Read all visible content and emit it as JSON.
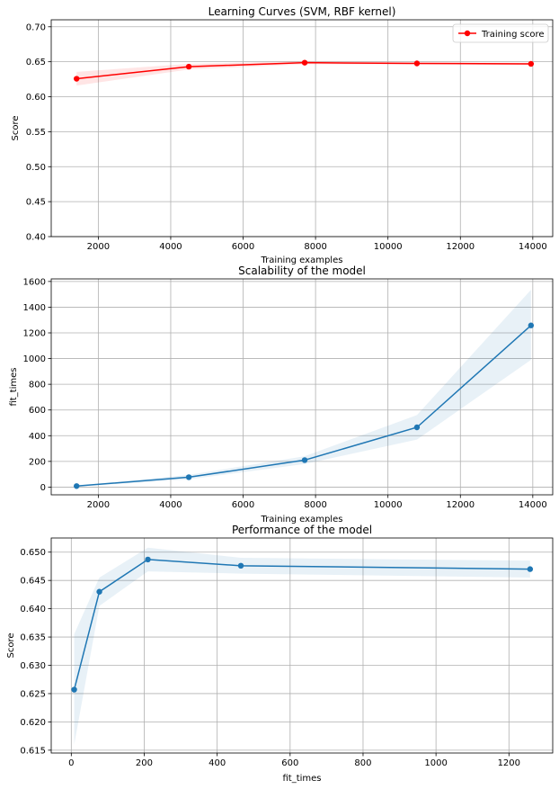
{
  "chart_data": [
    {
      "type": "line",
      "title": "Learning Curves (SVM, RBF kernel)",
      "xlabel": "Training examples",
      "ylabel": "Score",
      "xlim": [
        700,
        14550
      ],
      "ylim": [
        0.4,
        0.71
      ],
      "xticks": [
        2000,
        4000,
        6000,
        8000,
        10000,
        12000,
        14000
      ],
      "yticks": [
        0.4,
        0.45,
        0.5,
        0.55,
        0.6,
        0.65,
        0.7
      ],
      "xtick_labels": [
        "2000",
        "4000",
        "6000",
        "8000",
        "10000",
        "12000",
        "14000"
      ],
      "ytick_labels": [
        "0.40",
        "0.45",
        "0.50",
        "0.55",
        "0.60",
        "0.65",
        "0.70"
      ],
      "grid": true,
      "legend": "upper right",
      "series": [
        {
          "name": "Training score",
          "color": "#ff0000",
          "x": [
            1400,
            4500,
            7700,
            10800,
            13950
          ],
          "y": [
            0.6257,
            0.643,
            0.6487,
            0.6476,
            0.647
          ],
          "band_low": [
            0.616,
            0.639,
            0.6465,
            0.646,
            0.6455
          ],
          "band_high": [
            0.6355,
            0.647,
            0.651,
            0.6492,
            0.6485
          ]
        }
      ]
    },
    {
      "type": "line",
      "title": "Scalability of the model",
      "xlabel": "Training examples",
      "ylabel": "fit_times",
      "xlim": [
        700,
        14550
      ],
      "ylim": [
        -60,
        1620
      ],
      "xticks": [
        2000,
        4000,
        6000,
        8000,
        10000,
        12000,
        14000
      ],
      "yticks": [
        0,
        200,
        400,
        600,
        800,
        1000,
        1200,
        1400,
        1600
      ],
      "xtick_labels": [
        "2000",
        "4000",
        "6000",
        "8000",
        "10000",
        "12000",
        "14000"
      ],
      "ytick_labels": [
        "0",
        "200",
        "400",
        "600",
        "800",
        "1000",
        "1200",
        "1400",
        "1600"
      ],
      "grid": true,
      "series": [
        {
          "color": "#1f77b4",
          "x": [
            1400,
            4500,
            7700,
            10800,
            13950
          ],
          "y": [
            8,
            77,
            210,
            465,
            1258
          ],
          "band_low": [
            5,
            60,
            180,
            370,
            990
          ],
          "band_high": [
            12,
            95,
            240,
            560,
            1535
          ]
        }
      ]
    },
    {
      "type": "line",
      "title": "Performance of the model",
      "xlabel": "fit_times",
      "ylabel": "Score",
      "xlim": [
        -55,
        1320
      ],
      "ylim": [
        0.6145,
        0.6525
      ],
      "xticks": [
        0,
        200,
        400,
        600,
        800,
        1000,
        1200
      ],
      "yticks": [
        0.615,
        0.62,
        0.625,
        0.63,
        0.635,
        0.64,
        0.645,
        0.65
      ],
      "xtick_labels": [
        "0",
        "200",
        "400",
        "600",
        "800",
        "1000",
        "1200"
      ],
      "ytick_labels": [
        "0.615",
        "0.620",
        "0.625",
        "0.630",
        "0.635",
        "0.640",
        "0.645",
        "0.650"
      ],
      "grid": true,
      "series": [
        {
          "color": "#1f77b4",
          "x": [
            8,
            77,
            210,
            465,
            1258
          ],
          "y": [
            0.6257,
            0.643,
            0.6487,
            0.6476,
            0.647
          ],
          "band_low": [
            0.616,
            0.6405,
            0.6466,
            0.6462,
            0.6455
          ],
          "band_high": [
            0.6355,
            0.6455,
            0.6508,
            0.649,
            0.6485
          ]
        }
      ]
    }
  ]
}
